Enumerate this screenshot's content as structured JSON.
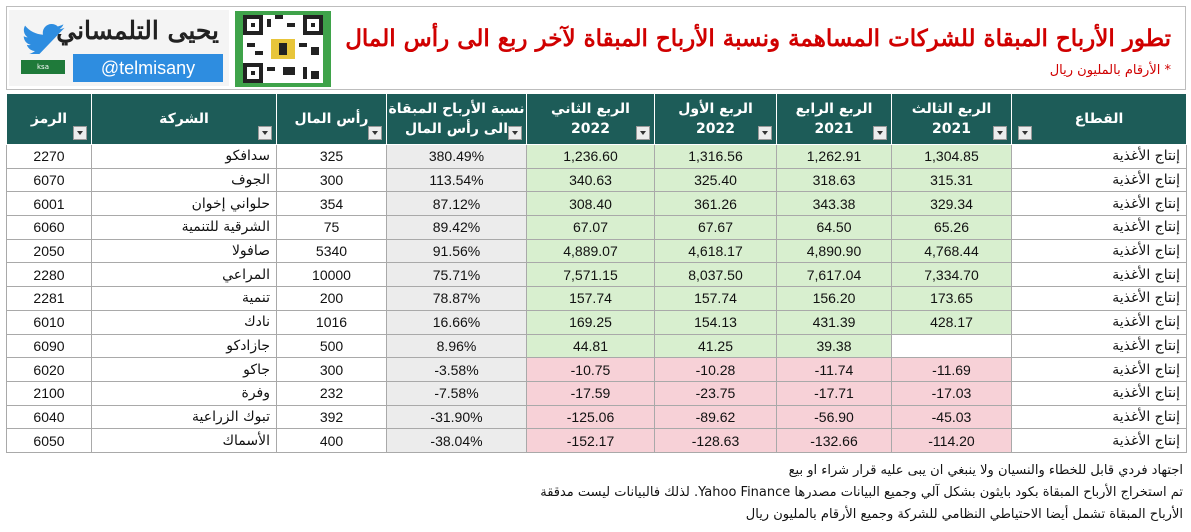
{
  "header": {
    "author_name": "يحيى التلمساني",
    "handle": "@telmisany",
    "flag_text": "ksa",
    "title": "تطور الأرباح المبقاة للشركات المساهمة ونسبة الأرباح المبقاة لآخر ربع الى رأس المال",
    "subtitle": "* الأرقام بالمليون ريال"
  },
  "colors": {
    "header_bg": "#1d5c58",
    "positive_bg": "#d8efcf",
    "negative_bg": "#f7d1d7",
    "ratio_bg": "#ececec",
    "title": "#d00000",
    "twitter": "#2e8de0"
  },
  "icons": [
    "twitter-bird-icon",
    "qr-code-icon",
    "filter-dropdown-icon",
    "filter-active-icon"
  ],
  "table": {
    "columns": {
      "code": "الرمز",
      "company": "الشركة",
      "capital": "رأس المال",
      "ratio_line1": "نسبة الأرباح المبقاة",
      "ratio_line2": "الى رأس المال",
      "q2_2022_line1": "الربع الثاني",
      "q2_2022_line2": "2022",
      "q1_2022_line1": "الربع الأول",
      "q1_2022_line2": "2022",
      "q4_2021_line1": "الربع الرابع",
      "q4_2021_line2": "2021",
      "q3_2021_line1": "الربع الثالث",
      "q3_2021_line2": "2021",
      "sector": "القطاع"
    },
    "rows": [
      {
        "code": "2270",
        "company": "سدافكو",
        "capital": "325",
        "ratio": "380.49%",
        "q2_2022": "1,236.60",
        "q1_2022": "1,316.56",
        "q4_2021": "1,262.91",
        "q3_2021": "1,304.85",
        "sector": "إنتاج الأغذية"
      },
      {
        "code": "6070",
        "company": "الجوف",
        "capital": "300",
        "ratio": "113.54%",
        "q2_2022": "340.63",
        "q1_2022": "325.40",
        "q4_2021": "318.63",
        "q3_2021": "315.31",
        "sector": "إنتاج الأغذية"
      },
      {
        "code": "6001",
        "company": "حلواني إخوان",
        "capital": "354",
        "ratio": "87.12%",
        "q2_2022": "308.40",
        "q1_2022": "361.26",
        "q4_2021": "343.38",
        "q3_2021": "329.34",
        "sector": "إنتاج الأغذية"
      },
      {
        "code": "6060",
        "company": "الشرقية للتنمية",
        "capital": "75",
        "ratio": "89.42%",
        "q2_2022": "67.07",
        "q1_2022": "67.67",
        "q4_2021": "64.50",
        "q3_2021": "65.26",
        "sector": "إنتاج الأغذية"
      },
      {
        "code": "2050",
        "company": "صافولا",
        "capital": "5340",
        "ratio": "91.56%",
        "q2_2022": "4,889.07",
        "q1_2022": "4,618.17",
        "q4_2021": "4,890.90",
        "q3_2021": "4,768.44",
        "sector": "إنتاج الأغذية"
      },
      {
        "code": "2280",
        "company": "المراعي",
        "capital": "10000",
        "ratio": "75.71%",
        "q2_2022": "7,571.15",
        "q1_2022": "8,037.50",
        "q4_2021": "7,617.04",
        "q3_2021": "7,334.70",
        "sector": "إنتاج الأغذية"
      },
      {
        "code": "2281",
        "company": "تنمية",
        "capital": "200",
        "ratio": "78.87%",
        "q2_2022": "157.74",
        "q1_2022": "157.74",
        "q4_2021": "156.20",
        "q3_2021": "173.65",
        "sector": "إنتاج الأغذية"
      },
      {
        "code": "6010",
        "company": "نادك",
        "capital": "1016",
        "ratio": "16.66%",
        "q2_2022": "169.25",
        "q1_2022": "154.13",
        "q4_2021": "431.39",
        "q3_2021": "428.17",
        "sector": "إنتاج الأغذية"
      },
      {
        "code": "6090",
        "company": "جازادكو",
        "capital": "500",
        "ratio": "8.96%",
        "q2_2022": "44.81",
        "q1_2022": "41.25",
        "q4_2021": "39.38",
        "q3_2021": "",
        "sector": "إنتاج الأغذية"
      },
      {
        "code": "6020",
        "company": "جاكو",
        "capital": "300",
        "ratio": "-3.58%",
        "q2_2022": "-10.75",
        "q1_2022": "-10.28",
        "q4_2021": "-11.74",
        "q3_2021": "-11.69",
        "sector": "إنتاج الأغذية"
      },
      {
        "code": "2100",
        "company": "وفرة",
        "capital": "232",
        "ratio": "-7.58%",
        "q2_2022": "-17.59",
        "q1_2022": "-23.75",
        "q4_2021": "-17.71",
        "q3_2021": "-17.03",
        "sector": "إنتاج الأغذية"
      },
      {
        "code": "6040",
        "company": "تبوك الزراعية",
        "capital": "392",
        "ratio": "-31.90%",
        "q2_2022": "-125.06",
        "q1_2022": "-89.62",
        "q4_2021": "-56.90",
        "q3_2021": "-45.03",
        "sector": "إنتاج الأغذية"
      },
      {
        "code": "6050",
        "company": "الأسماك",
        "capital": "400",
        "ratio": "-38.04%",
        "q2_2022": "-152.17",
        "q1_2022": "-128.63",
        "q4_2021": "-132.66",
        "q3_2021": "-114.20",
        "sector": "إنتاج الأغذية"
      }
    ]
  },
  "notes": {
    "line1": "اجتهاد فردي قابل للخطاء والنسيان ولا ينبغي ان يبى عليه قرار شراء او بيع",
    "line2": "تم استخراج الأرباح المبقاة بكود بايثون بشكل آلي وجميع البيانات مصدرها Yahoo Finance. لذلك فالبيانات ليست مدققة",
    "line3": "الأرباح المبقاة تشمل أيضا الاحتياطي النظامي للشركة وجميع الأرقام بالمليون ريال"
  }
}
